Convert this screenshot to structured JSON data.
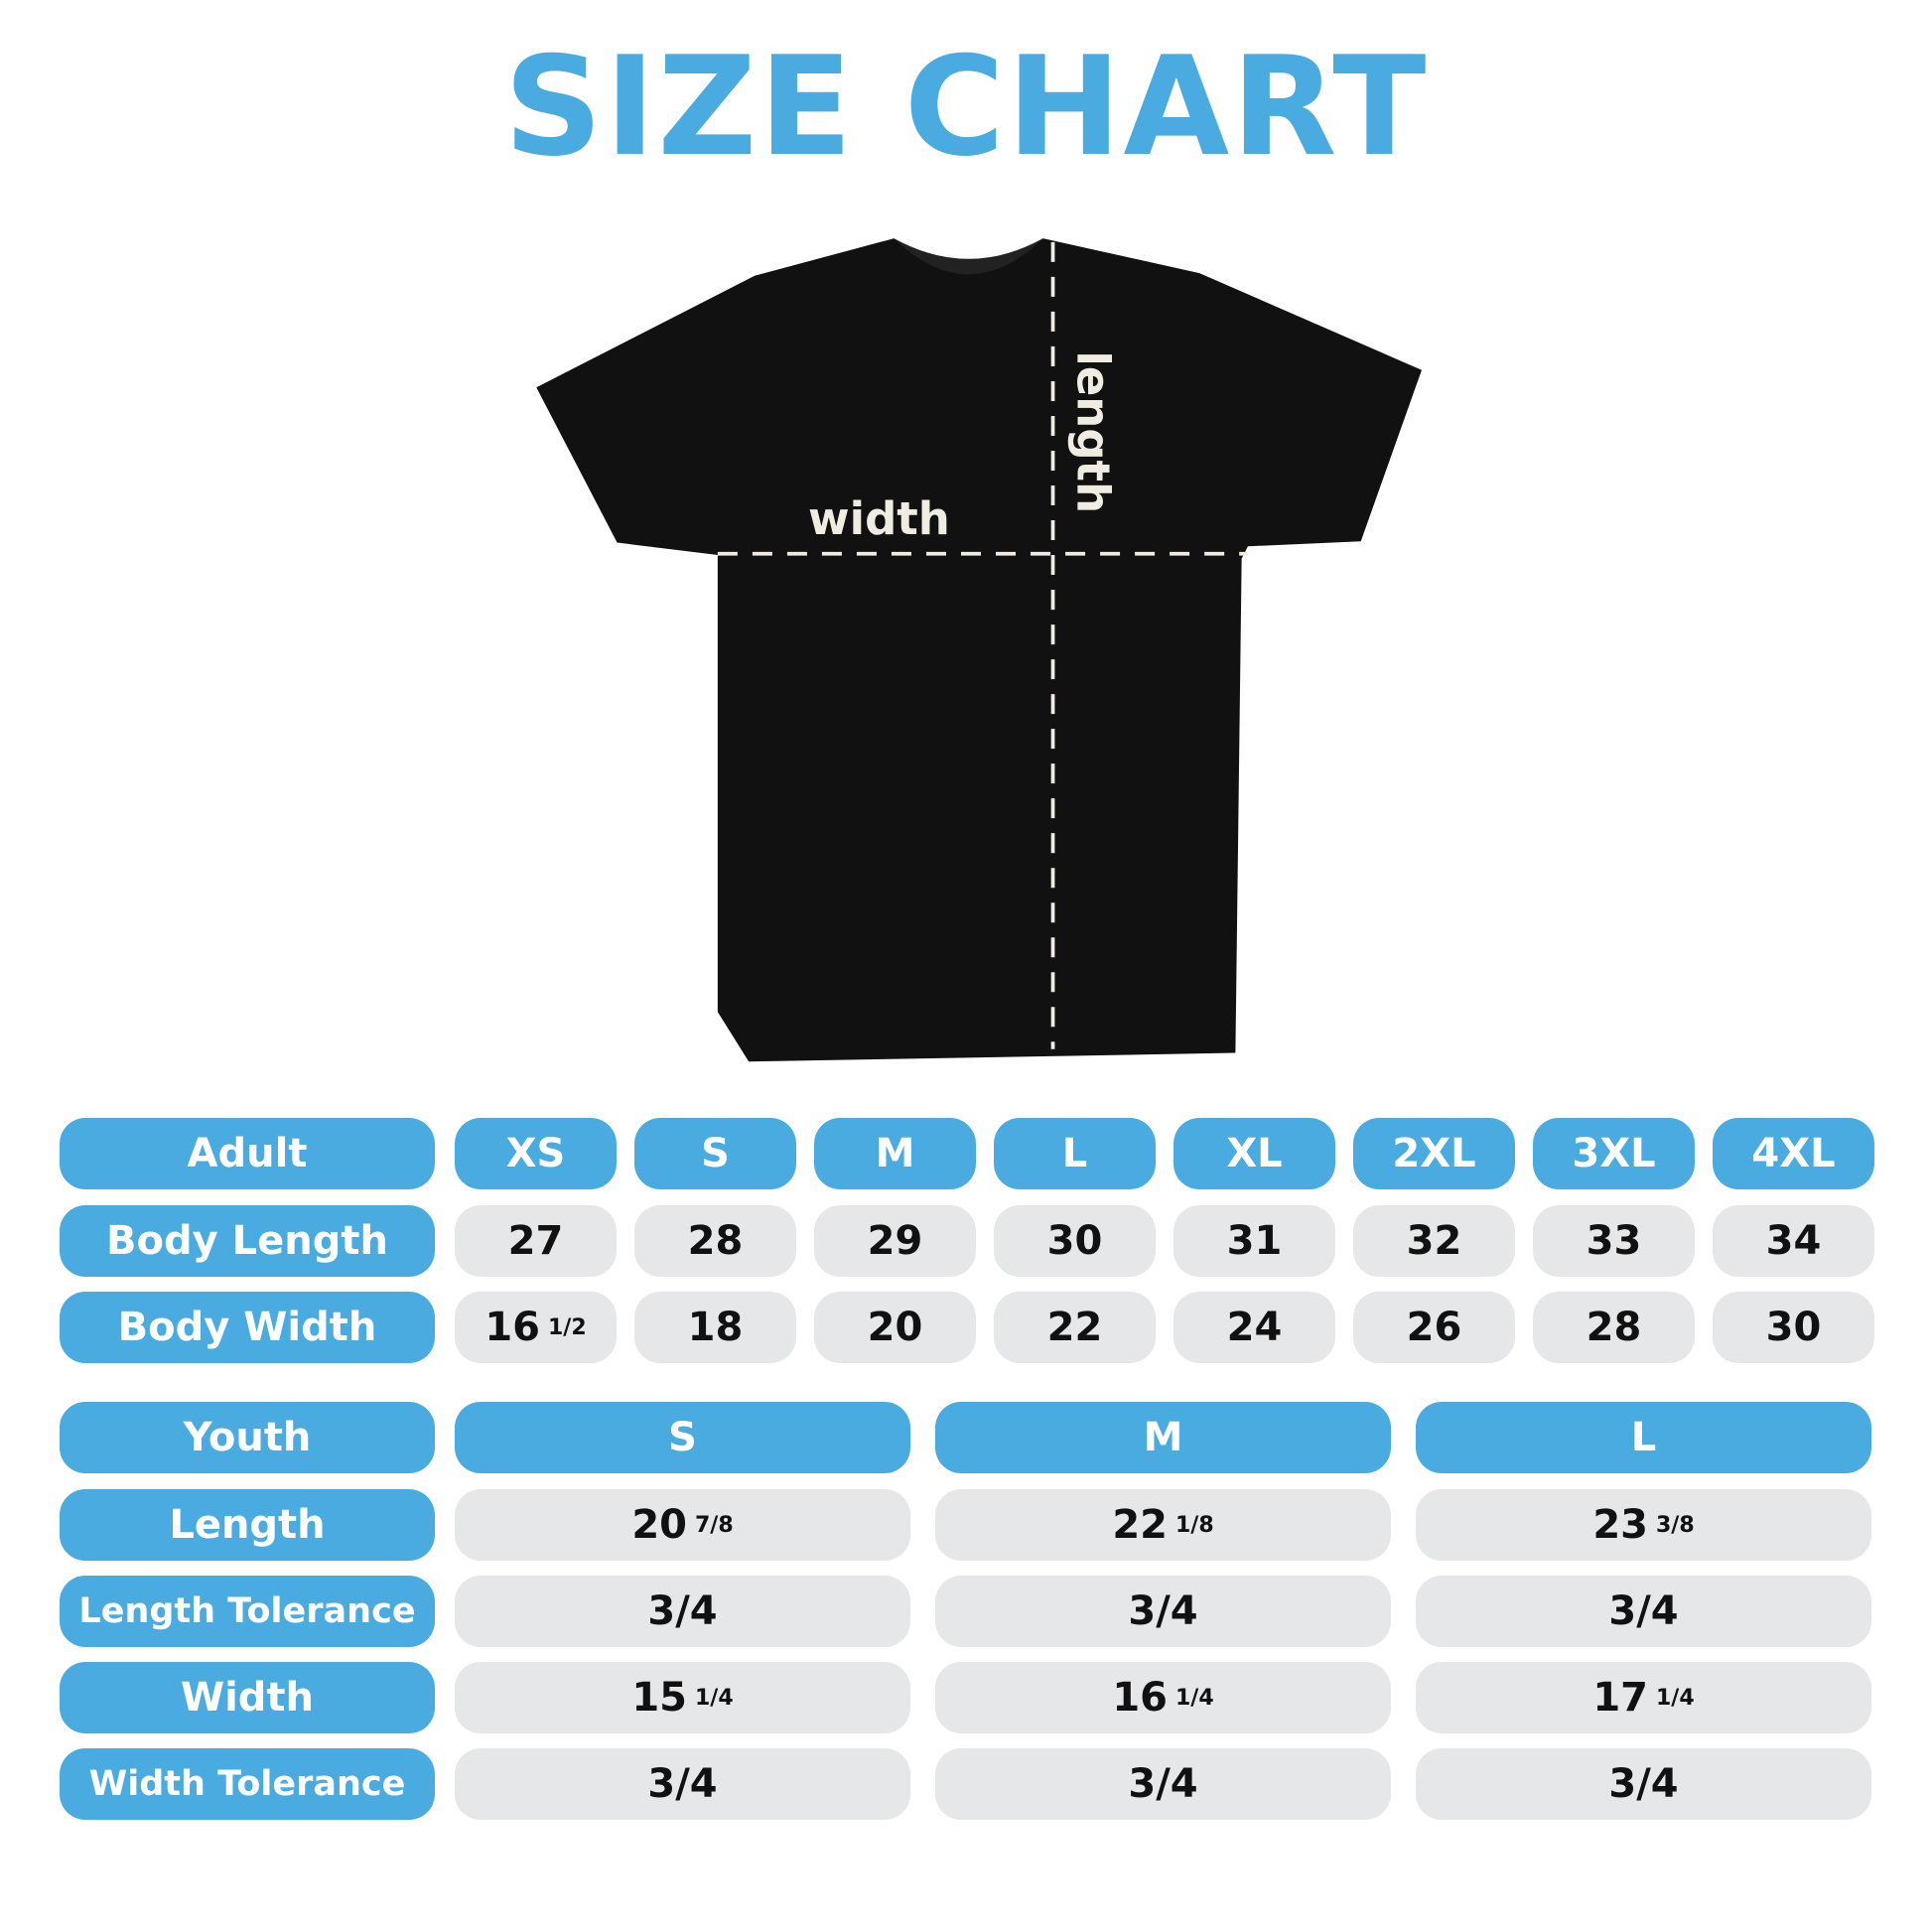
{
  "title": "SIZE CHART",
  "diagram": {
    "width_label": "width",
    "length_label": "length"
  },
  "colors": {
    "accent": "#4aabe0",
    "cell_bg": "#e6e7e9",
    "shirt": "#111111"
  },
  "adult": {
    "header": "Adult",
    "sizes": [
      "XS",
      "S",
      "M",
      "L",
      "XL",
      "2XL",
      "3XL",
      "4XL"
    ],
    "rows": [
      {
        "label": "Body Length",
        "values": [
          [
            "27",
            ""
          ],
          [
            "28",
            ""
          ],
          [
            "29",
            ""
          ],
          [
            "30",
            ""
          ],
          [
            "31",
            ""
          ],
          [
            "32",
            ""
          ],
          [
            "33",
            ""
          ],
          [
            "34",
            ""
          ]
        ]
      },
      {
        "label": "Body Width",
        "values": [
          [
            "16",
            "1/2"
          ],
          [
            "18",
            ""
          ],
          [
            "20",
            ""
          ],
          [
            "22",
            ""
          ],
          [
            "24",
            ""
          ],
          [
            "26",
            ""
          ],
          [
            "28",
            ""
          ],
          [
            "30",
            ""
          ]
        ]
      }
    ]
  },
  "youth": {
    "header": "Youth",
    "sizes": [
      "S",
      "M",
      "L"
    ],
    "rows": [
      {
        "label": "Length",
        "values": [
          [
            "20",
            "7/8"
          ],
          [
            "22",
            "1/8"
          ],
          [
            "23",
            "3/8"
          ]
        ]
      },
      {
        "label": "Length Tolerance",
        "values": [
          [
            "3/4",
            ""
          ],
          [
            "3/4",
            ""
          ],
          [
            "3/4",
            ""
          ]
        ]
      },
      {
        "label": "Width",
        "values": [
          [
            "15",
            "1/4"
          ],
          [
            "16",
            "1/4"
          ],
          [
            "17",
            "1/4"
          ]
        ]
      },
      {
        "label": "Width Tolerance",
        "values": [
          [
            "3/4",
            ""
          ],
          [
            "3/4",
            ""
          ],
          [
            "3/4",
            ""
          ]
        ]
      }
    ]
  }
}
